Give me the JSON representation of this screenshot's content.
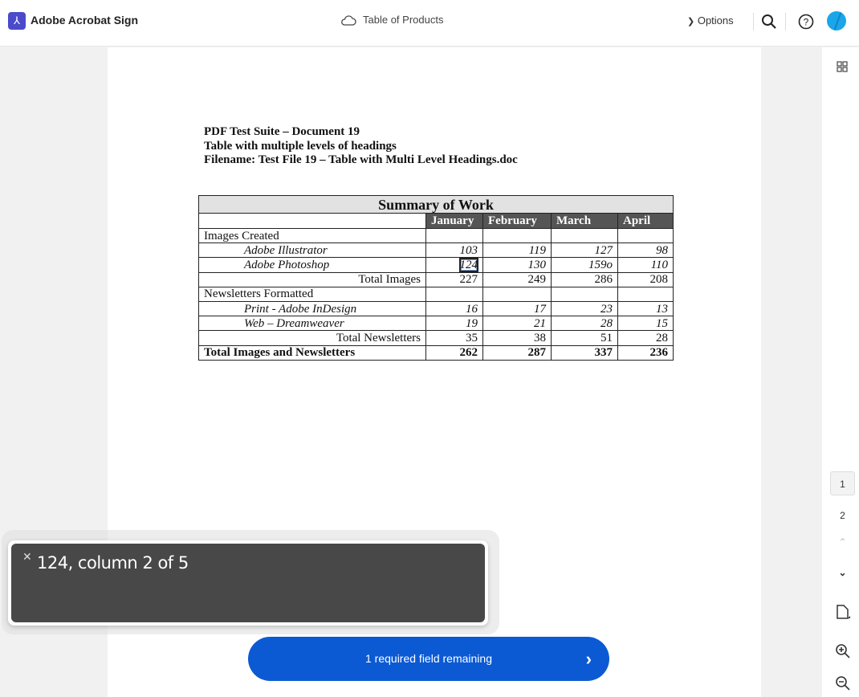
{
  "header": {
    "brand": "Adobe Acrobat Sign",
    "doc_title": "Table of Products",
    "options_label": "Options"
  },
  "document": {
    "lines": [
      "PDF Test Suite – Document 19",
      "Table with multiple levels of headings",
      "Filename: Test File 19 – Table with Multi Level Headings.doc"
    ],
    "table": {
      "title": "Summary of Work",
      "columns": [
        "January",
        "February",
        "March",
        "April"
      ],
      "rows": [
        {
          "type": "section",
          "label": "Images Created",
          "values": [
            "",
            "",
            "",
            ""
          ]
        },
        {
          "type": "sub",
          "label": "Adobe Illustrator",
          "values": [
            "103",
            "119",
            "127",
            "98"
          ]
        },
        {
          "type": "sub",
          "label": "Adobe Photoshop",
          "values": [
            "124",
            "130",
            "159o",
            "110"
          ],
          "selected_col": 0
        },
        {
          "type": "total",
          "label": "Total Images",
          "values": [
            "227",
            "249",
            "286",
            "208"
          ]
        },
        {
          "type": "section",
          "label": "Newsletters Formatted",
          "values": [
            "",
            "",
            "",
            ""
          ]
        },
        {
          "type": "sub",
          "label": "Print - Adobe InDesign",
          "values": [
            "16",
            "17",
            "23",
            "13"
          ]
        },
        {
          "type": "sub",
          "label": "Web – Dreamweaver",
          "values": [
            "19",
            "21",
            "28",
            "15"
          ]
        },
        {
          "type": "total",
          "label": "Total Newsletters",
          "values": [
            "35",
            "38",
            "51",
            "28"
          ]
        },
        {
          "type": "grand",
          "label": "Total Images and Newsletters",
          "values": [
            "262",
            "287",
            "337",
            "236"
          ]
        }
      ]
    }
  },
  "toast": {
    "text": "124, column 2 of 5"
  },
  "required_button": {
    "label": "1 required field remaining"
  },
  "rail": {
    "pages": [
      "1",
      "2"
    ],
    "current_page": "1"
  },
  "colors": {
    "accent": "#0b5ad4",
    "brand": "#4b4acb",
    "toast": "#484848"
  }
}
